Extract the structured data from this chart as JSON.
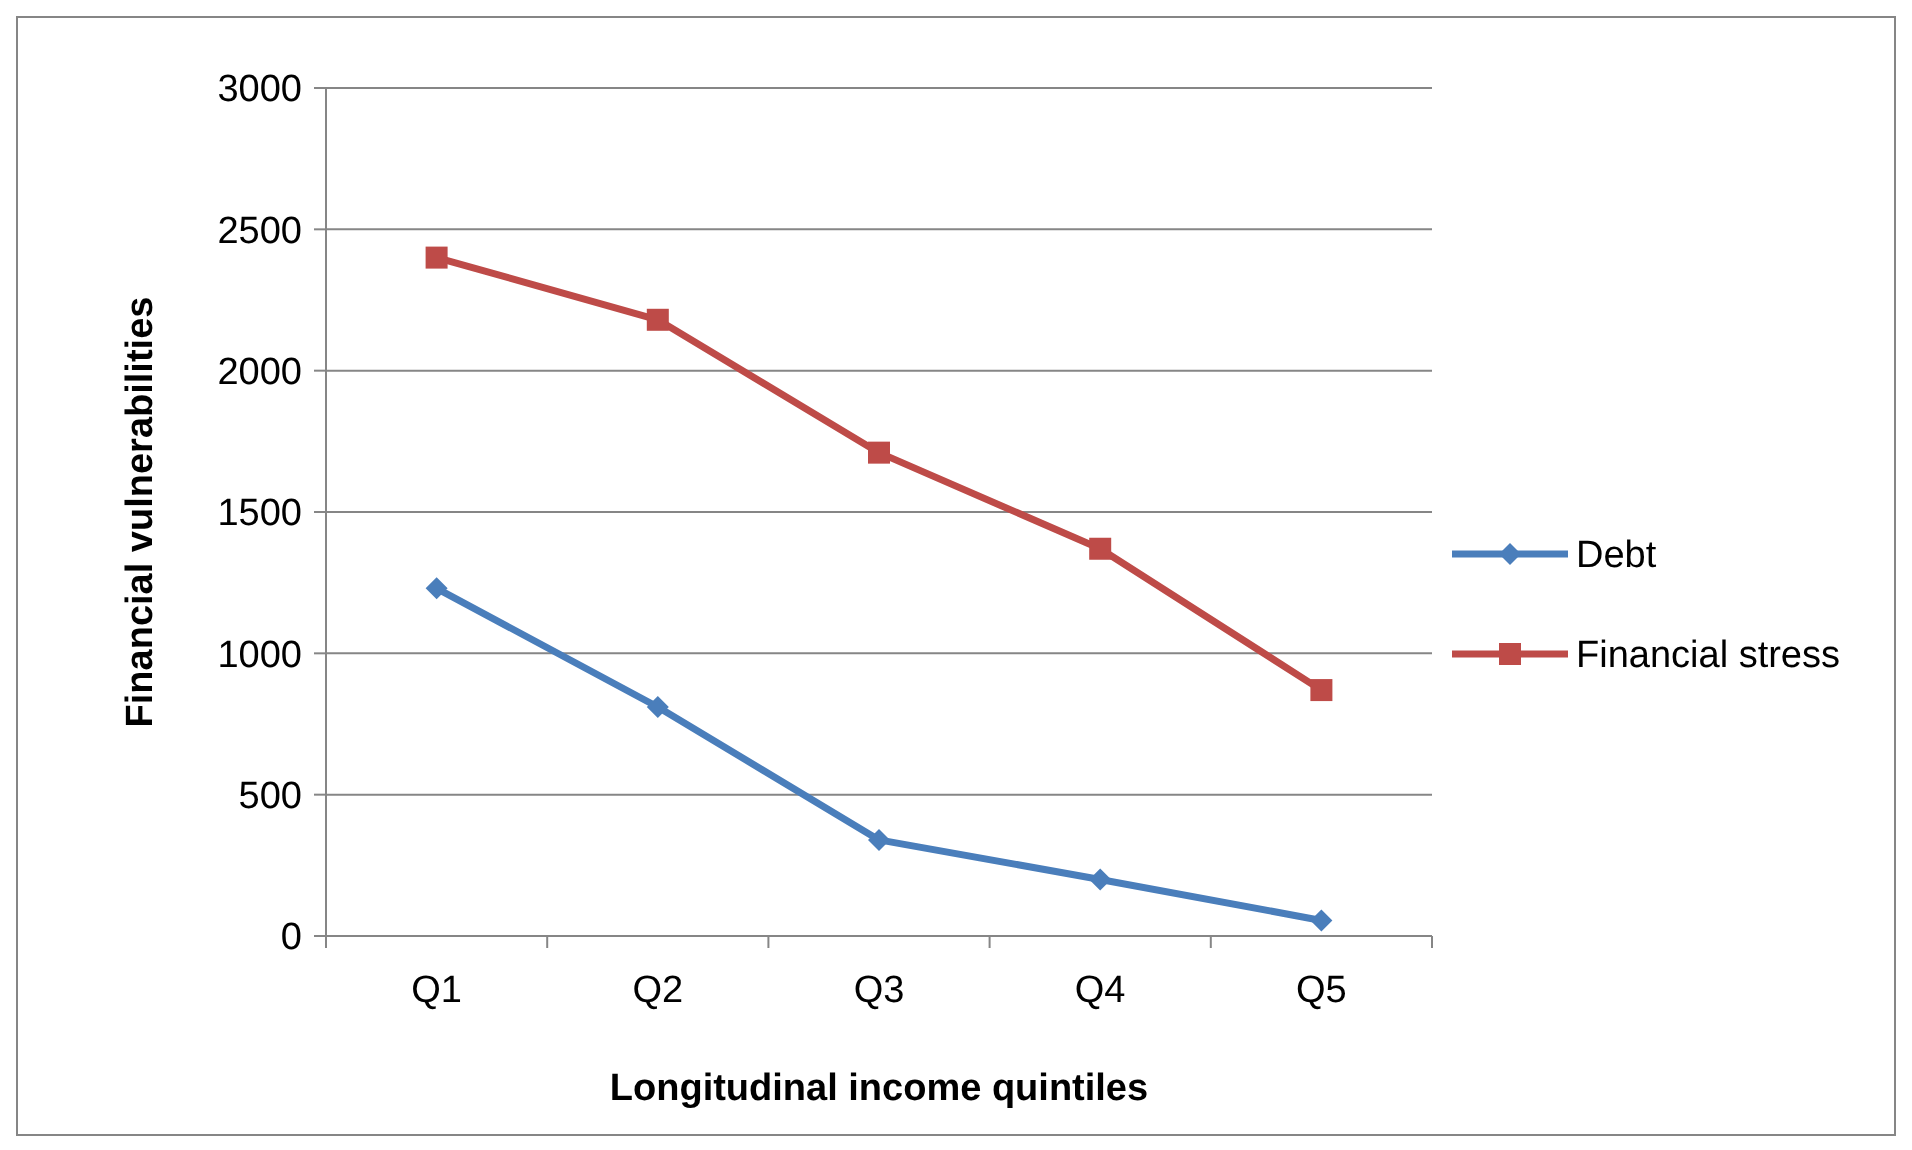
{
  "chart_data": {
    "type": "line",
    "xlabel": "Longitudinal income quintiles",
    "ylabel": "Financial vulnerabilities",
    "categories": [
      "Q1",
      "Q2",
      "Q3",
      "Q4",
      "Q5"
    ],
    "series": [
      {
        "name": "Debt",
        "color": "#4a7ebb",
        "marker": "diamond",
        "values": [
          1230,
          810,
          340,
          200,
          55
        ]
      },
      {
        "name": "Financial stress",
        "color": "#be4b48",
        "marker": "square",
        "values": [
          2400,
          2180,
          1710,
          1370,
          870
        ]
      }
    ],
    "ylim": [
      0,
      3000
    ],
    "yticks": [
      0,
      500,
      1000,
      1500,
      2000,
      2500,
      3000
    ],
    "grid": "y",
    "legend": "right"
  }
}
